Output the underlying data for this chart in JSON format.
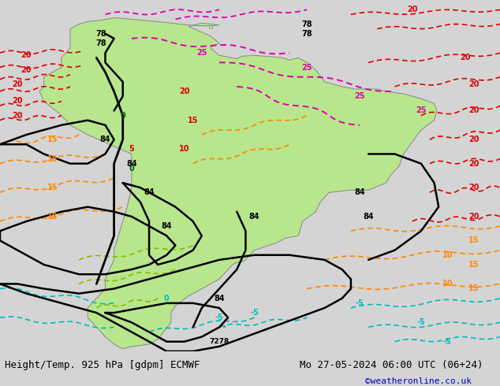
{
  "title_left": "Height/Temp. 925 hPa [gdpm] ECMWF",
  "title_right": "Mo 27-05-2024 06:00 UTC (06+24)",
  "credit": "©weatheronline.co.uk",
  "bg_color": "#d4d4d4",
  "land_color": "#b8e68c",
  "ocean_color": "#d4d4d4",
  "border_color": "#888888",
  "fig_width": 6.34,
  "fig_height": 4.9,
  "dpi": 100,
  "title_fontsize": 9.0,
  "credit_fontsize": 8.0
}
